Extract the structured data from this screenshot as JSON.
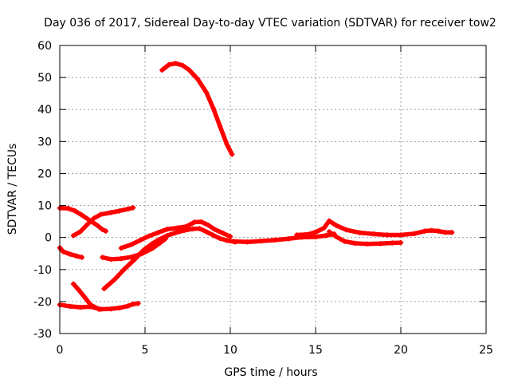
{
  "chart_data": {
    "type": "scatter",
    "title": "Day 036 of 2017, Sidereal Day-to-day VTEC variation (SDTVAR) for receiver tow2",
    "xlabel": "GPS time / hours",
    "ylabel": "SDTVAR / TECUs",
    "xlim": [
      0,
      25
    ],
    "ylim": [
      -30,
      60
    ],
    "xticks": [
      0,
      5,
      10,
      15,
      20,
      25
    ],
    "yticks": [
      -30,
      -20,
      -10,
      0,
      10,
      20,
      30,
      40,
      50,
      60
    ],
    "grid": true,
    "colors": {
      "series": "#ff0000",
      "grid": "#a0a0a0",
      "axis": "#000000"
    },
    "series": [
      {
        "name": "trace-1",
        "points": [
          [
            0.0,
            -21.0
          ],
          [
            0.6,
            -21.5
          ],
          [
            1.2,
            -21.8
          ],
          [
            1.8,
            -21.6
          ],
          [
            2.4,
            -22.4
          ],
          [
            3.0,
            -22.3
          ],
          [
            3.5,
            -22.0
          ],
          [
            4.0,
            -21.4
          ],
          [
            4.3,
            -20.8
          ],
          [
            4.6,
            -20.6
          ]
        ]
      },
      {
        "name": "trace-2",
        "points": [
          [
            0.0,
            -3.2
          ],
          [
            0.2,
            -4.4
          ],
          [
            0.6,
            -5.2
          ],
          [
            1.0,
            -5.8
          ],
          [
            1.3,
            -6.2
          ]
        ]
      },
      {
        "name": "trace-3",
        "points": [
          [
            0.0,
            9.2
          ],
          [
            0.5,
            9.1
          ],
          [
            0.9,
            8.3
          ],
          [
            1.3,
            7.0
          ],
          [
            1.8,
            5.2
          ],
          [
            2.2,
            3.8
          ],
          [
            2.5,
            2.5
          ],
          [
            2.7,
            2.0
          ]
        ]
      },
      {
        "name": "trace-4",
        "points": [
          [
            0.8,
            0.6
          ],
          [
            1.2,
            1.8
          ],
          [
            1.6,
            4.0
          ],
          [
            2.0,
            6.0
          ],
          [
            2.4,
            7.2
          ],
          [
            3.0,
            7.8
          ],
          [
            3.5,
            8.3
          ],
          [
            4.0,
            8.9
          ],
          [
            4.3,
            9.3
          ]
        ]
      },
      {
        "name": "trace-5",
        "points": [
          [
            0.8,
            -14.5
          ],
          [
            1.1,
            -16.3
          ],
          [
            1.5,
            -18.9
          ],
          [
            1.8,
            -21.0
          ],
          [
            2.3,
            -22.4
          ]
        ]
      },
      {
        "name": "trace-6",
        "points": [
          [
            2.6,
            -16.0
          ],
          [
            3.2,
            -13.2
          ],
          [
            3.8,
            -9.8
          ],
          [
            4.4,
            -6.8
          ],
          [
            4.9,
            -4.0
          ],
          [
            5.4,
            -2.0
          ],
          [
            5.8,
            -0.7
          ],
          [
            6.3,
            0.6
          ],
          [
            6.8,
            1.5
          ],
          [
            7.3,
            2.2
          ],
          [
            7.8,
            2.7
          ],
          [
            8.2,
            2.8
          ],
          [
            8.6,
            1.8
          ],
          [
            9.0,
            0.7
          ],
          [
            9.4,
            -0.3
          ],
          [
            9.8,
            -0.9
          ],
          [
            10.3,
            -1.4
          ]
        ]
      },
      {
        "name": "trace-7",
        "points": [
          [
            2.5,
            -6.2
          ],
          [
            3.0,
            -6.8
          ],
          [
            3.6,
            -6.6
          ],
          [
            4.2,
            -6.1
          ],
          [
            4.8,
            -5.1
          ],
          [
            5.4,
            -3.5
          ],
          [
            5.9,
            -1.6
          ],
          [
            6.2,
            -0.4
          ]
        ]
      },
      {
        "name": "trace-8",
        "points": [
          [
            3.6,
            -3.3
          ],
          [
            4.2,
            -2.2
          ],
          [
            4.7,
            -0.9
          ],
          [
            5.2,
            0.4
          ],
          [
            5.8,
            1.6
          ],
          [
            6.3,
            2.6
          ],
          [
            6.9,
            3.0
          ],
          [
            7.4,
            3.4
          ],
          [
            7.9,
            4.8
          ],
          [
            8.3,
            4.9
          ],
          [
            8.7,
            3.9
          ],
          [
            9.1,
            2.5
          ],
          [
            9.6,
            1.3
          ],
          [
            10.0,
            0.3
          ]
        ]
      },
      {
        "name": "trace-9",
        "points": [
          [
            6.0,
            52.3
          ],
          [
            6.4,
            54.0
          ],
          [
            6.8,
            54.4
          ],
          [
            7.2,
            53.8
          ],
          [
            7.6,
            52.3
          ],
          [
            8.1,
            49.4
          ],
          [
            8.6,
            45.3
          ],
          [
            9.0,
            40.4
          ],
          [
            9.4,
            34.7
          ],
          [
            9.8,
            29.1
          ],
          [
            10.1,
            26.0
          ]
        ]
      },
      {
        "name": "trace-10",
        "points": [
          [
            10.2,
            -1.2
          ],
          [
            11.0,
            -1.4
          ],
          [
            11.8,
            -1.1
          ],
          [
            12.6,
            -0.8
          ],
          [
            13.4,
            -0.4
          ],
          [
            14.2,
            0.1
          ],
          [
            15.0,
            0.2
          ],
          [
            15.6,
            0.6
          ],
          [
            16.1,
            1.1
          ]
        ]
      },
      {
        "name": "trace-11",
        "points": [
          [
            13.9,
            0.8
          ],
          [
            14.6,
            1.0
          ],
          [
            15.1,
            1.9
          ],
          [
            15.5,
            3.0
          ],
          [
            15.8,
            5.2
          ],
          [
            16.2,
            3.8
          ],
          [
            16.8,
            2.4
          ],
          [
            17.6,
            1.5
          ],
          [
            18.4,
            1.1
          ],
          [
            19.2,
            0.8
          ],
          [
            20.0,
            0.8
          ],
          [
            20.8,
            1.2
          ],
          [
            21.4,
            2.0
          ],
          [
            21.8,
            2.2
          ],
          [
            22.2,
            2.0
          ],
          [
            22.6,
            1.6
          ],
          [
            23.0,
            1.6
          ]
        ]
      },
      {
        "name": "trace-12",
        "points": [
          [
            15.8,
            1.8
          ],
          [
            16.2,
            0.3
          ],
          [
            16.7,
            -1.2
          ],
          [
            17.3,
            -1.8
          ],
          [
            18.0,
            -2.0
          ],
          [
            18.8,
            -1.9
          ],
          [
            19.5,
            -1.7
          ],
          [
            20.0,
            -1.6
          ]
        ]
      }
    ]
  }
}
